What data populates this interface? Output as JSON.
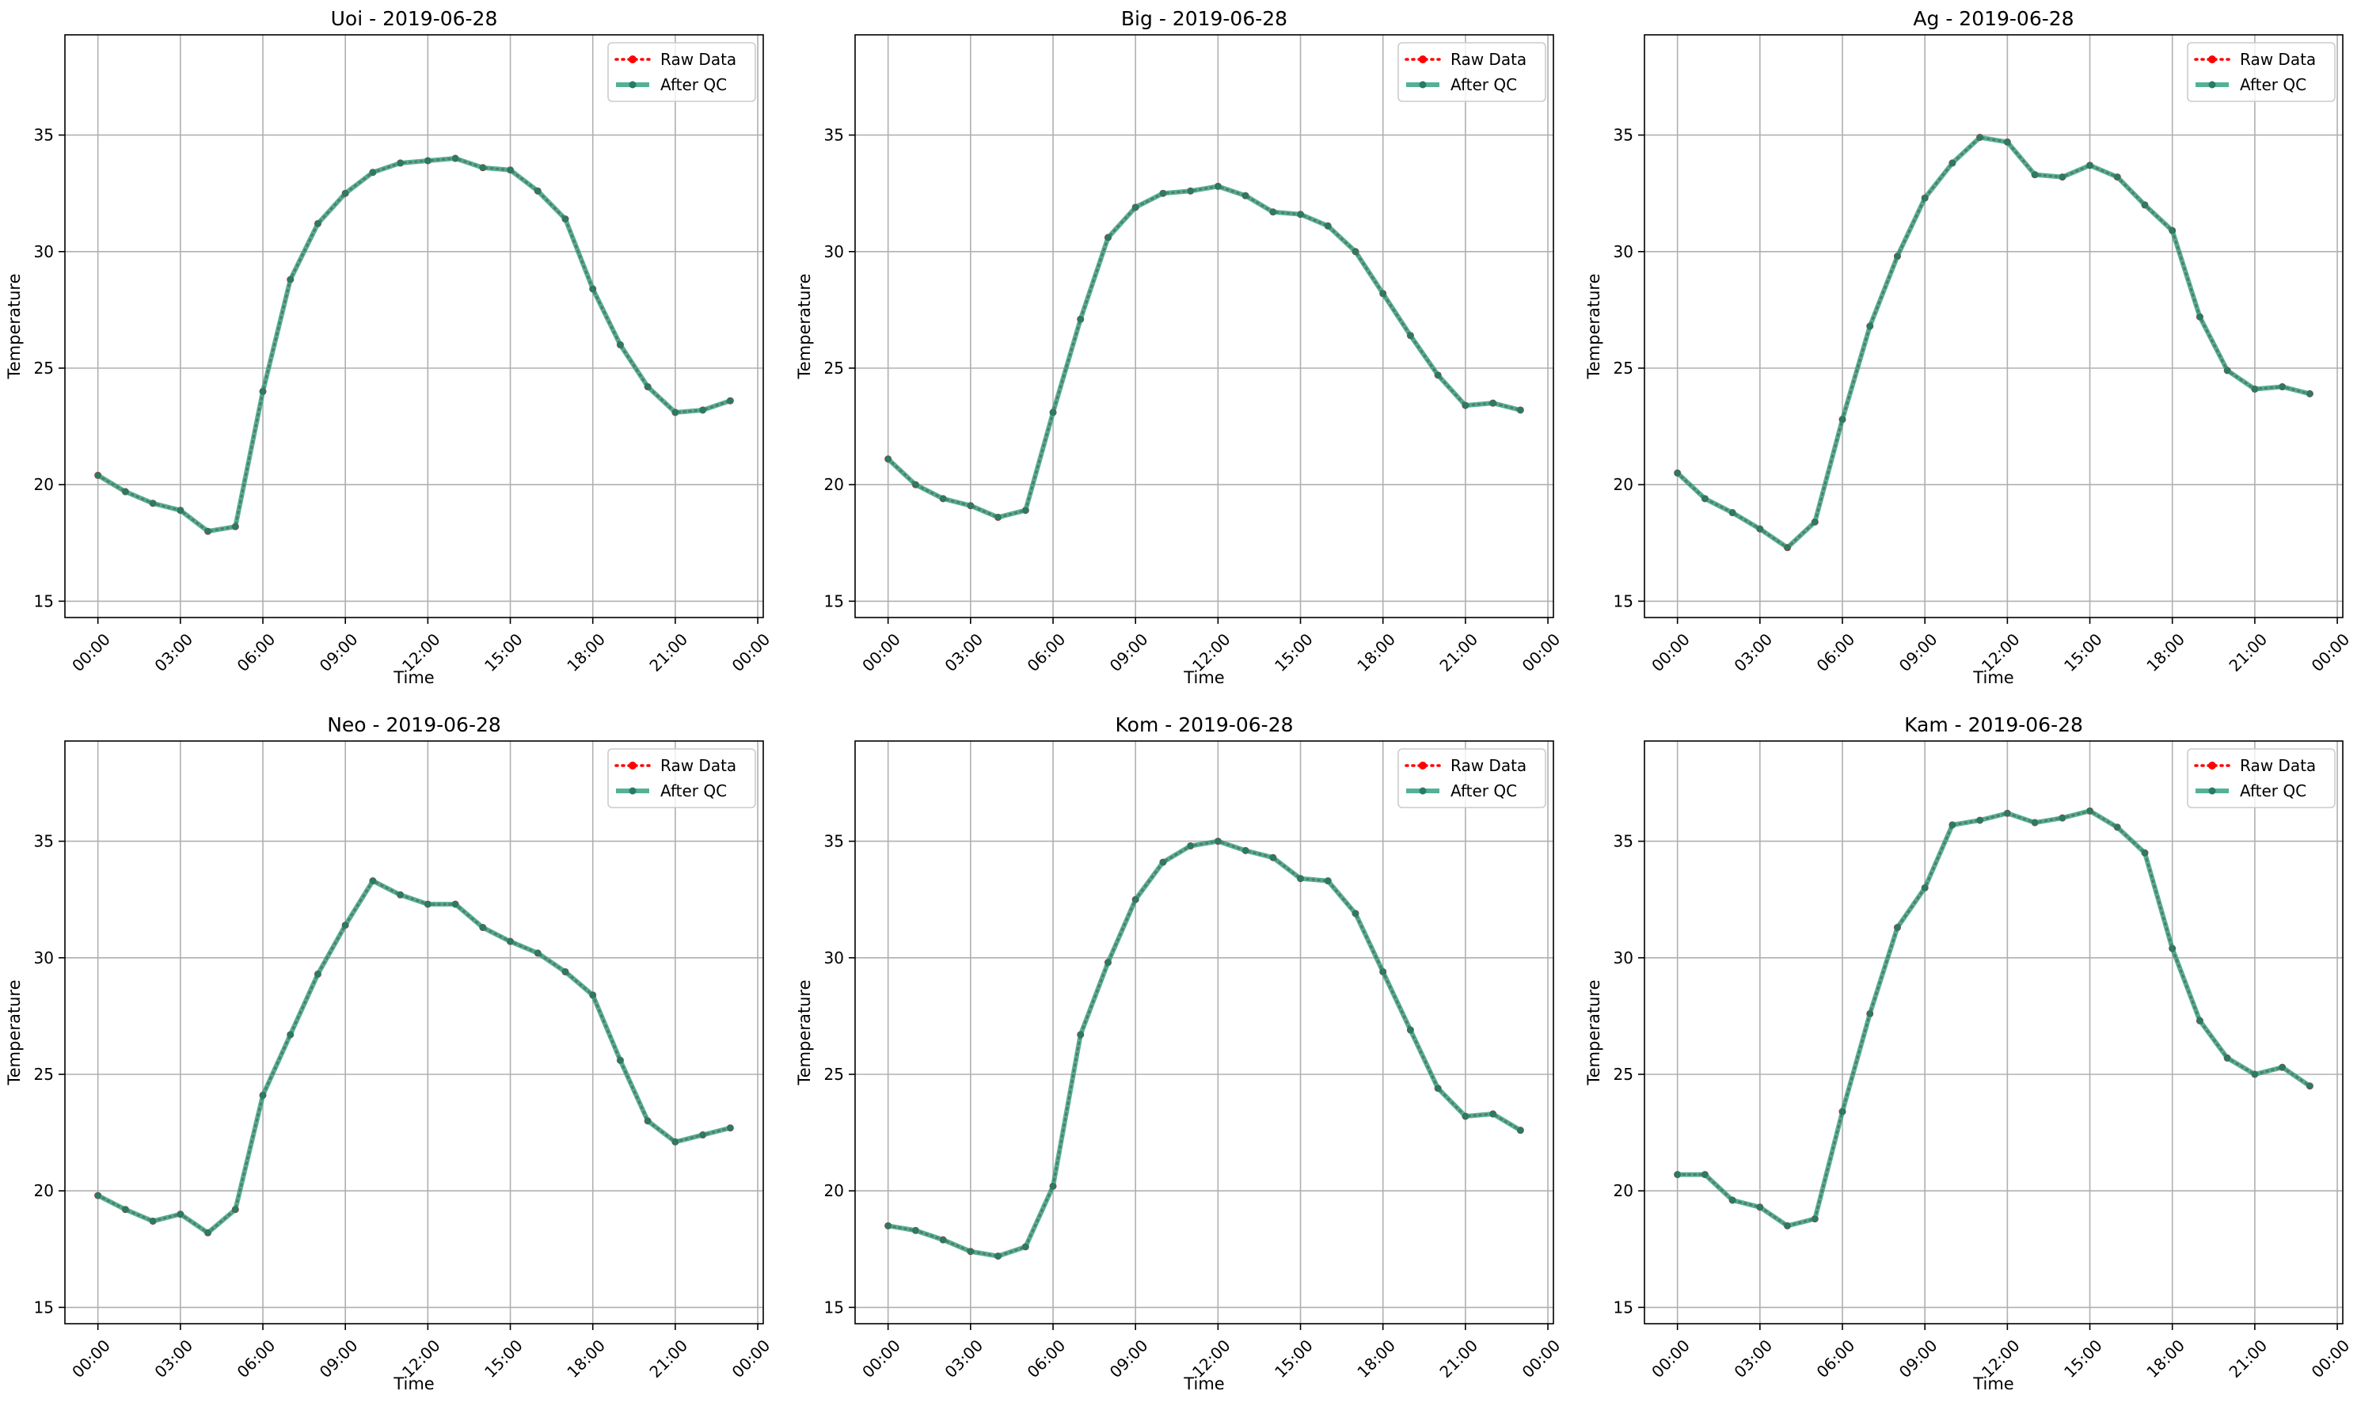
{
  "colors": {
    "raw": "#ff0000",
    "qc": "#2a9d7c",
    "qc_marker": "#2a7a64",
    "grid": "#b0b0b0"
  },
  "chart_data": [
    {
      "type": "line",
      "title": "Uoi - 2019-06-28",
      "xlabel": "Time",
      "ylabel": "Temperature",
      "xticks": [
        "00:00",
        "03:00",
        "06:00",
        "09:00",
        "12:00",
        "15:00",
        "18:00",
        "21:00",
        "00:00"
      ],
      "yticks": [
        15,
        20,
        25,
        30,
        35
      ],
      "xlim": [
        -1.2,
        24.2
      ],
      "ylim": [
        14.3,
        39.3
      ],
      "grid": true,
      "legend": "top-right",
      "series": [
        {
          "name": "Raw Data",
          "style": "dotted-red",
          "x": [
            0,
            1,
            2,
            3,
            4,
            5,
            6,
            7,
            8,
            9,
            10,
            11,
            12,
            13,
            14,
            15,
            16,
            17,
            18,
            19,
            20,
            21,
            22,
            23
          ],
          "y": [
            20.4,
            19.7,
            19.2,
            18.9,
            18.0,
            18.2,
            24.0,
            28.8,
            31.2,
            32.5,
            33.4,
            33.8,
            33.9,
            34.0,
            33.6,
            33.5,
            32.6,
            31.4,
            28.4,
            26.0,
            24.2,
            23.1,
            23.2,
            23.6
          ]
        },
        {
          "name": "After QC",
          "style": "solid-green",
          "x": [
            0,
            1,
            2,
            3,
            4,
            5,
            6,
            7,
            8,
            9,
            10,
            11,
            12,
            13,
            14,
            15,
            16,
            17,
            18,
            19,
            20,
            21,
            22,
            23
          ],
          "y": [
            20.4,
            19.7,
            19.2,
            18.9,
            18.0,
            18.2,
            24.0,
            28.8,
            31.2,
            32.5,
            33.4,
            33.8,
            33.9,
            34.0,
            33.6,
            33.5,
            32.6,
            31.4,
            28.4,
            26.0,
            24.2,
            23.1,
            23.2,
            23.6
          ]
        }
      ]
    },
    {
      "type": "line",
      "title": "Big - 2019-06-28",
      "xlabel": "Time",
      "ylabel": "Temperature",
      "xticks": [
        "00:00",
        "03:00",
        "06:00",
        "09:00",
        "12:00",
        "15:00",
        "18:00",
        "21:00",
        "00:00"
      ],
      "yticks": [
        15,
        20,
        25,
        30,
        35
      ],
      "xlim": [
        -1.2,
        24.2
      ],
      "ylim": [
        14.3,
        39.3
      ],
      "grid": true,
      "legend": "top-right",
      "series": [
        {
          "name": "Raw Data",
          "style": "dotted-red",
          "x": [
            0,
            1,
            2,
            3,
            4,
            5,
            6,
            7,
            8,
            9,
            10,
            11,
            12,
            13,
            14,
            15,
            16,
            17,
            18,
            19,
            20,
            21,
            22,
            23
          ],
          "y": [
            21.1,
            20.0,
            19.4,
            19.1,
            18.6,
            18.9,
            23.1,
            27.1,
            30.6,
            31.9,
            32.5,
            32.6,
            32.8,
            32.4,
            31.7,
            31.6,
            31.1,
            30.0,
            28.2,
            26.4,
            24.7,
            23.4,
            23.5,
            23.2
          ]
        },
        {
          "name": "After QC",
          "style": "solid-green",
          "x": [
            0,
            1,
            2,
            3,
            4,
            5,
            6,
            7,
            8,
            9,
            10,
            11,
            12,
            13,
            14,
            15,
            16,
            17,
            18,
            19,
            20,
            21,
            22,
            23
          ],
          "y": [
            21.1,
            20.0,
            19.4,
            19.1,
            18.6,
            18.9,
            23.1,
            27.1,
            30.6,
            31.9,
            32.5,
            32.6,
            32.8,
            32.4,
            31.7,
            31.6,
            31.1,
            30.0,
            28.2,
            26.4,
            24.7,
            23.4,
            23.5,
            23.2
          ]
        }
      ]
    },
    {
      "type": "line",
      "title": "Ag - 2019-06-28",
      "xlabel": "Time",
      "ylabel": "Temperature",
      "xticks": [
        "00:00",
        "03:00",
        "06:00",
        "09:00",
        "12:00",
        "15:00",
        "18:00",
        "21:00",
        "00:00"
      ],
      "yticks": [
        15,
        20,
        25,
        30,
        35
      ],
      "xlim": [
        -1.2,
        24.2
      ],
      "ylim": [
        14.3,
        39.3
      ],
      "grid": true,
      "legend": "top-right",
      "series": [
        {
          "name": "Raw Data",
          "style": "dotted-red",
          "x": [
            0,
            1,
            2,
            3,
            4,
            5,
            6,
            7,
            8,
            9,
            10,
            11,
            12,
            13,
            14,
            15,
            16,
            17,
            18,
            19,
            20,
            21,
            22,
            23
          ],
          "y": [
            20.5,
            19.4,
            18.8,
            18.1,
            17.3,
            18.4,
            22.8,
            26.8,
            29.8,
            32.3,
            33.8,
            34.9,
            34.7,
            33.3,
            33.2,
            33.7,
            33.2,
            32.0,
            30.9,
            27.2,
            24.9,
            24.1,
            24.2,
            23.9
          ]
        },
        {
          "name": "After QC",
          "style": "solid-green",
          "x": [
            0,
            1,
            2,
            3,
            4,
            5,
            6,
            7,
            8,
            9,
            10,
            11,
            12,
            13,
            14,
            15,
            16,
            17,
            18,
            19,
            20,
            21,
            22,
            23
          ],
          "y": [
            20.5,
            19.4,
            18.8,
            18.1,
            17.3,
            18.4,
            22.8,
            26.8,
            29.8,
            32.3,
            33.8,
            34.9,
            34.7,
            33.3,
            33.2,
            33.7,
            33.2,
            32.0,
            30.9,
            27.2,
            24.9,
            24.1,
            24.2,
            23.9
          ]
        }
      ]
    },
    {
      "type": "line",
      "title": "Neo - 2019-06-28",
      "xlabel": "Time",
      "ylabel": "Temperature",
      "xticks": [
        "00:00",
        "03:00",
        "06:00",
        "09:00",
        "12:00",
        "15:00",
        "18:00",
        "21:00",
        "00:00"
      ],
      "yticks": [
        15,
        20,
        25,
        30,
        35
      ],
      "xlim": [
        -1.2,
        24.2
      ],
      "ylim": [
        14.3,
        39.3
      ],
      "grid": true,
      "legend": "top-right",
      "series": [
        {
          "name": "Raw Data",
          "style": "dotted-red",
          "x": [
            0,
            1,
            2,
            3,
            4,
            5,
            6,
            7,
            8,
            9,
            10,
            11,
            12,
            13,
            14,
            15,
            16,
            17,
            18,
            19,
            20,
            21,
            22,
            23
          ],
          "y": [
            19.8,
            19.2,
            18.7,
            19.0,
            18.2,
            19.2,
            24.1,
            26.7,
            29.3,
            31.4,
            33.3,
            32.7,
            32.3,
            32.3,
            31.3,
            30.7,
            30.2,
            29.4,
            28.4,
            25.6,
            23.0,
            22.1,
            22.4,
            22.7
          ]
        },
        {
          "name": "After QC",
          "style": "solid-green",
          "x": [
            0,
            1,
            2,
            3,
            4,
            5,
            6,
            7,
            8,
            9,
            10,
            11,
            12,
            13,
            14,
            15,
            16,
            17,
            18,
            19,
            20,
            21,
            22,
            23
          ],
          "y": [
            19.8,
            19.2,
            18.7,
            19.0,
            18.2,
            19.2,
            24.1,
            26.7,
            29.3,
            31.4,
            33.3,
            32.7,
            32.3,
            32.3,
            31.3,
            30.7,
            30.2,
            29.4,
            28.4,
            25.6,
            23.0,
            22.1,
            22.4,
            22.7
          ]
        }
      ]
    },
    {
      "type": "line",
      "title": "Kom - 2019-06-28",
      "xlabel": "Time",
      "ylabel": "Temperature",
      "xticks": [
        "00:00",
        "03:00",
        "06:00",
        "09:00",
        "12:00",
        "15:00",
        "18:00",
        "21:00",
        "00:00"
      ],
      "yticks": [
        15,
        20,
        25,
        30,
        35
      ],
      "xlim": [
        -1.2,
        24.2
      ],
      "ylim": [
        14.3,
        39.3
      ],
      "grid": true,
      "legend": "top-right",
      "series": [
        {
          "name": "Raw Data",
          "style": "dotted-red",
          "x": [
            0,
            1,
            2,
            3,
            4,
            5,
            6,
            7,
            8,
            9,
            10,
            11,
            12,
            13,
            14,
            15,
            16,
            17,
            18,
            19,
            20,
            21,
            22,
            23
          ],
          "y": [
            18.5,
            18.3,
            17.9,
            17.4,
            17.2,
            17.6,
            20.2,
            26.7,
            29.8,
            32.5,
            34.1,
            34.8,
            35.0,
            34.6,
            34.3,
            33.4,
            33.3,
            31.9,
            29.4,
            26.9,
            24.4,
            23.2,
            23.3,
            22.6
          ]
        },
        {
          "name": "After QC",
          "style": "solid-green",
          "x": [
            0,
            1,
            2,
            3,
            4,
            5,
            6,
            7,
            8,
            9,
            10,
            11,
            12,
            13,
            14,
            15,
            16,
            17,
            18,
            19,
            20,
            21,
            22,
            23
          ],
          "y": [
            18.5,
            18.3,
            17.9,
            17.4,
            17.2,
            17.6,
            20.2,
            26.7,
            29.8,
            32.5,
            34.1,
            34.8,
            35.0,
            34.6,
            34.3,
            33.4,
            33.3,
            31.9,
            29.4,
            26.9,
            24.4,
            23.2,
            23.3,
            22.6
          ]
        }
      ]
    },
    {
      "type": "line",
      "title": "Kam - 2019-06-28",
      "xlabel": "Time",
      "ylabel": "Temperature",
      "xticks": [
        "00:00",
        "03:00",
        "06:00",
        "09:00",
        "12:00",
        "15:00",
        "18:00",
        "21:00",
        "00:00"
      ],
      "yticks": [
        15,
        20,
        25,
        30,
        35
      ],
      "xlim": [
        -1.2,
        24.2
      ],
      "ylim": [
        14.3,
        39.3
      ],
      "grid": true,
      "legend": "top-right",
      "series": [
        {
          "name": "Raw Data",
          "style": "dotted-red",
          "x": [
            0,
            1,
            2,
            3,
            4,
            5,
            6,
            7,
            8,
            9,
            10,
            11,
            12,
            13,
            14,
            15,
            16,
            17,
            18,
            19,
            20,
            21,
            22,
            23
          ],
          "y": [
            20.7,
            20.7,
            19.6,
            19.3,
            18.5,
            18.8,
            23.4,
            27.6,
            31.3,
            33.0,
            35.7,
            35.9,
            36.2,
            35.8,
            36.0,
            36.3,
            35.6,
            34.5,
            30.4,
            27.3,
            25.7,
            25.0,
            25.3,
            24.5
          ]
        },
        {
          "name": "After QC",
          "style": "solid-green",
          "x": [
            0,
            1,
            2,
            3,
            4,
            5,
            6,
            7,
            8,
            9,
            10,
            11,
            12,
            13,
            14,
            15,
            16,
            17,
            18,
            19,
            20,
            21,
            22,
            23
          ],
          "y": [
            20.7,
            20.7,
            19.6,
            19.3,
            18.5,
            18.8,
            23.4,
            27.6,
            31.3,
            33.0,
            35.7,
            35.9,
            36.2,
            35.8,
            36.0,
            36.3,
            35.6,
            34.5,
            30.4,
            27.3,
            25.7,
            25.0,
            25.3,
            24.5
          ]
        }
      ]
    }
  ]
}
